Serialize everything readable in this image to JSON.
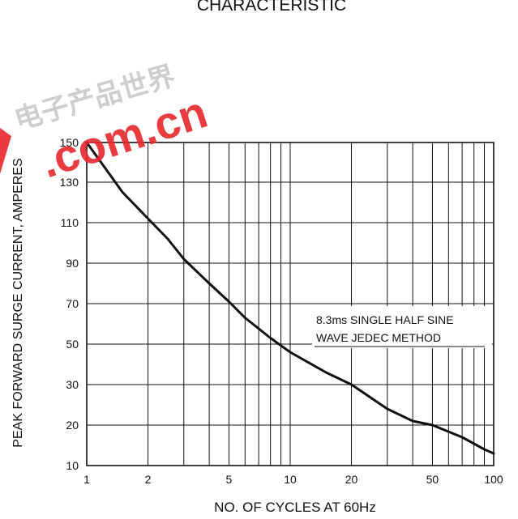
{
  "chart_data": {
    "type": "line",
    "title": "CHARACTERISTIC",
    "xlabel": "NO. OF CYCLES AT 60Hz",
    "ylabel": "PEAK FORWARD SURGE CURRENT, AMPERES",
    "x_scale": "log",
    "xlim": [
      1,
      100
    ],
    "ylim": [
      10,
      150
    ],
    "x_ticks": [
      1,
      2,
      5,
      10,
      20,
      50,
      100
    ],
    "x_tick_labels": [
      "1",
      "2",
      "5",
      "10",
      "20",
      "50",
      "100"
    ],
    "y_ticks": [
      10,
      20,
      30,
      50,
      70,
      90,
      110,
      130,
      150
    ],
    "y_tick_labels": [
      "10",
      "20",
      "30",
      "50",
      "70",
      "90",
      "110",
      "130",
      "150"
    ],
    "grid": true,
    "annotation": [
      "8.3ms SINGLE HALF SINE",
      "WAVE JEDEC METHOD"
    ],
    "series": [
      {
        "x": [
          1,
          1.5,
          2,
          2.5,
          3,
          4,
          5,
          6,
          8,
          10,
          15,
          20,
          30,
          40,
          50,
          70,
          90,
          100
        ],
        "y": [
          150,
          125,
          112,
          102,
          92,
          80,
          71,
          63,
          53,
          46,
          36,
          30,
          24,
          21,
          20,
          17,
          14,
          13
        ]
      }
    ]
  },
  "watermark": {
    "text": ".com.cn",
    "chinese": "电子产品世界",
    "color": "#e8262d"
  }
}
